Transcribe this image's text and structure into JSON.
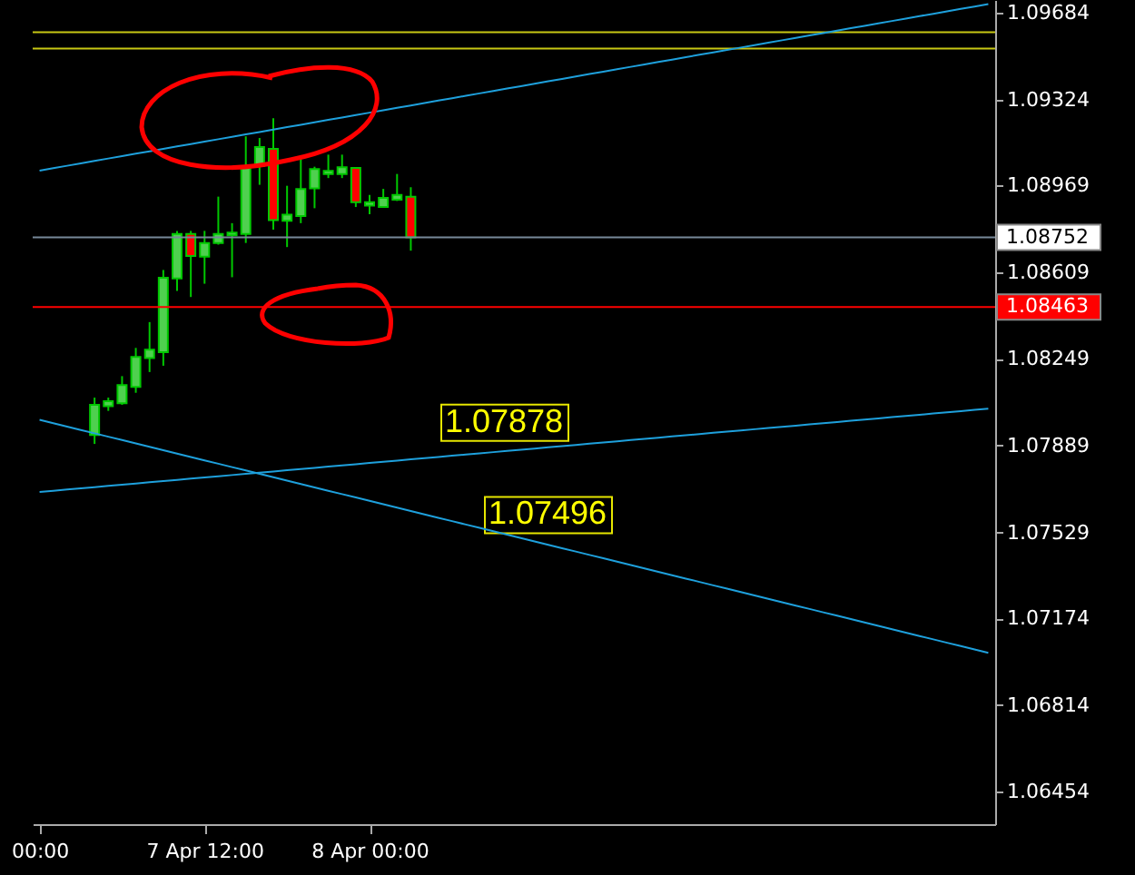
{
  "chart_data": {
    "type": "candlestick",
    "categories": [
      "00:00",
      null,
      null,
      null,
      null,
      null,
      null,
      null,
      null,
      null,
      null,
      null,
      "7 Apr 12:00",
      null,
      null,
      null,
      null,
      null,
      null,
      null,
      null,
      null,
      null,
      null,
      "8 Apr 00:00",
      null,
      null,
      null,
      null,
      null,
      null,
      null,
      null,
      null,
      null,
      null,
      null,
      null,
      null,
      null,
      null,
      null,
      null,
      null,
      null,
      null,
      null,
      null,
      null,
      null,
      null,
      null,
      null,
      null,
      null,
      null,
      null,
      null,
      null,
      null,
      null,
      null,
      null,
      null,
      null,
      null,
      null,
      null,
      null,
      null
    ],
    "ohlc": [
      null,
      null,
      null,
      null,
      [
        1.07933,
        1.08088,
        1.07896,
        1.08058
      ],
      [
        1.08052,
        1.08088,
        1.08033,
        1.08073
      ],
      [
        1.08065,
        1.08177,
        1.08058,
        1.0814
      ],
      [
        1.08132,
        1.08294,
        1.08108,
        1.08257
      ],
      [
        1.08252,
        1.08401,
        1.08194,
        1.08287
      ],
      [
        1.08276,
        1.08617,
        1.0822,
        1.08585
      ],
      [
        1.08582,
        1.08779,
        1.0853,
        1.08766
      ],
      [
        1.08766,
        1.08779,
        1.08505,
        1.08675
      ],
      [
        1.08672,
        1.08779,
        1.0856,
        1.08729
      ],
      [
        1.08729,
        1.08921,
        1.08722,
        1.08766
      ],
      [
        1.08761,
        1.08811,
        1.08587,
        1.08772
      ],
      [
        1.08766,
        1.09171,
        1.08729,
        1.0904
      ],
      [
        1.09048,
        1.09164,
        1.0897,
        1.09127
      ],
      [
        1.09119,
        1.09246,
        1.08784,
        1.08824
      ],
      [
        1.08821,
        1.08966,
        1.08712,
        1.08846
      ],
      [
        1.08841,
        1.09089,
        1.08811,
        1.08953
      ],
      [
        1.08955,
        1.09045,
        1.08873,
        1.09035
      ],
      [
        1.09015,
        1.09095,
        1.08998,
        1.09028
      ],
      [
        1.09015,
        1.09095,
        1.08998,
        1.09043
      ],
      [
        1.0904,
        1.0904,
        1.08878,
        1.08898
      ],
      [
        1.08884,
        1.08928,
        1.08848,
        1.08898
      ],
      [
        1.08878,
        1.08953,
        1.08878,
        1.08916
      ],
      [
        1.08908,
        1.09015,
        1.08903,
        1.08928
      ],
      [
        1.08921,
        1.0896,
        1.08697,
        1.08752
      ],
      null,
      null,
      null,
      null,
      null,
      null,
      null,
      null,
      null,
      null,
      null,
      null,
      null,
      null,
      null,
      null,
      null,
      null,
      null,
      null,
      null,
      null,
      null,
      null,
      null,
      null,
      null,
      null,
      null,
      null,
      null,
      null,
      null,
      null,
      null,
      null,
      null,
      null,
      null,
      null,
      null,
      null
    ],
    "colors": [
      null,
      null,
      null,
      null,
      "#4fd04f",
      "#4fd04f",
      "#4fd04f",
      "#4fd04f",
      "#4fd04f",
      "#4fd04f",
      "#4fd04f",
      "#ff0000",
      "#4fd04f",
      "#4fd04f",
      "#4fd04f",
      "#4fd04f",
      "#4fd04f",
      "#ff0000",
      "#4fd04f",
      "#4fd04f",
      "#4fd04f",
      "#4fd04f",
      "#4fd04f",
      "#ff0000",
      "#4fd04f",
      "#4fd04f",
      "#4fd04f",
      "#ff0000",
      null,
      null,
      null,
      null,
      null,
      null,
      null,
      null,
      null,
      null,
      null,
      null,
      null,
      null,
      null,
      null,
      null,
      null,
      null,
      null,
      null,
      null,
      null,
      null,
      null,
      null,
      null,
      null,
      null,
      null,
      null,
      null,
      null,
      null,
      null,
      null,
      null,
      null,
      null,
      null,
      null,
      null
    ],
    "series": [
      {
        "type": "line",
        "color": "#1ea0dc",
        "values": [
          1.09029,
          1.09039,
          1.09049,
          1.09059,
          1.09069,
          1.09079,
          1.09089,
          1.09099,
          1.09109,
          1.09119,
          1.09129,
          1.09139,
          1.09149,
          1.09159,
          1.09169,
          1.09179,
          1.09189,
          1.09199,
          1.09209,
          1.09219,
          1.09229,
          1.09239,
          1.09249,
          1.09259,
          1.09269,
          1.09279,
          1.09289,
          1.09299,
          1.09309,
          1.09319,
          1.09329,
          1.09339,
          1.09349,
          1.09359,
          1.09369,
          1.09379,
          1.09389,
          1.09399,
          1.09409,
          1.09419,
          1.09429,
          1.09439,
          1.09449,
          1.09459,
          1.09469,
          1.09479,
          1.09489,
          1.09499,
          1.09509,
          1.09519,
          1.09529,
          1.09539,
          1.09549,
          1.09559,
          1.09569,
          1.09579,
          1.09589,
          1.09599,
          1.09609,
          1.09619,
          1.09629,
          1.09639,
          1.09649,
          1.09659,
          1.09669,
          1.09679,
          1.09689,
          1.09699,
          1.09709,
          1.09719
        ]
      },
      {
        "type": "line",
        "color": "#1ea0dc",
        "values": [
          1.07697,
          1.07702,
          1.07707,
          1.07712,
          1.07717,
          1.07722,
          1.07727,
          1.07732,
          1.07737,
          1.07742,
          1.07747,
          1.07752,
          1.07757,
          1.07762,
          1.07767,
          1.07772,
          1.07777,
          1.07782,
          1.07787,
          1.07792,
          1.07797,
          1.07802,
          1.07807,
          1.07812,
          1.07817,
          1.07822,
          1.07827,
          1.07832,
          1.07837,
          1.07842,
          1.07847,
          1.07852,
          1.07857,
          1.07862,
          1.07867,
          1.07872,
          1.07877,
          1.07882,
          1.07887,
          1.07892,
          1.07897,
          1.07902,
          1.07907,
          1.07912,
          1.07917,
          1.07922,
          1.07927,
          1.07932,
          1.07937,
          1.07942,
          1.07947,
          1.07952,
          1.07957,
          1.07962,
          1.07967,
          1.07972,
          1.07977,
          1.07982,
          1.07987,
          1.07992,
          1.07997,
          1.08002,
          1.08007,
          1.08012,
          1.08017,
          1.08022,
          1.08027,
          1.08032,
          1.08037,
          1.08042
        ]
      },
      {
        "type": "line",
        "color": "#1ea0dc",
        "values": [
          1.07996,
          1.07982,
          1.07968,
          1.07954,
          1.0794,
          1.07926,
          1.07912,
          1.07898,
          1.07884,
          1.0787,
          1.07856,
          1.07842,
          1.07828,
          1.07814,
          1.078,
          1.07786,
          1.07772,
          1.07758,
          1.07744,
          1.0773,
          1.07716,
          1.07702,
          1.07688,
          1.07674,
          1.0766,
          1.07646,
          1.07632,
          1.07618,
          1.07604,
          1.0759,
          1.07576,
          1.07562,
          1.07548,
          1.07534,
          1.0752,
          1.07506,
          1.07492,
          1.07478,
          1.07464,
          1.0745,
          1.07436,
          1.07422,
          1.07408,
          1.07394,
          1.0738,
          1.07366,
          1.07352,
          1.07338,
          1.07324,
          1.0731,
          1.07296,
          1.07282,
          1.07268,
          1.07254,
          1.0724,
          1.07226,
          1.07212,
          1.07198,
          1.07184,
          1.0717,
          1.07156,
          1.07142,
          1.07128,
          1.07114,
          1.071,
          1.07086,
          1.07072,
          1.07058,
          1.07044,
          1.0703
        ]
      }
    ],
    "ref_lines": [
      {
        "axis": "y",
        "value": 1.09602,
        "color": "#c8c814"
      },
      {
        "axis": "y",
        "value": 1.09535,
        "color": "#c8c814"
      },
      {
        "axis": "y",
        "value": 1.08752,
        "label": "1.08752",
        "color": "#778899"
      },
      {
        "axis": "y",
        "value": 1.08463,
        "label": "1.08463",
        "color": "#ff0000"
      }
    ],
    "annotations": [
      {
        "text": "1.07878",
        "y": 1.07878
      },
      {
        "text": "1.07496",
        "y": 1.07496
      }
    ],
    "ylim": [
      1.0632,
      1.09736
    ],
    "yticks": [
      1.09684,
      1.09324,
      1.08969,
      1.08609,
      1.08249,
      1.07889,
      1.07529,
      1.07174,
      1.06814,
      1.06454
    ]
  }
}
